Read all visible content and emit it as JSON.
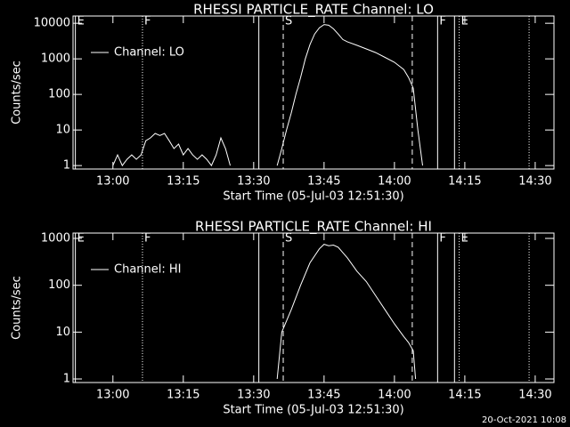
{
  "chart_data": [
    {
      "type": "line",
      "title": "RHESSI PARTICLE_RATE Channel: LO",
      "xlabel": "Start Time (05-Jul-03 12:51:30)",
      "ylabel": "Counts/sec",
      "log_y": true,
      "xlim": [
        771.5,
        874
      ],
      "ylim": [
        0.8,
        16000
      ],
      "xticks": [
        {
          "value": 780,
          "label": "13:00"
        },
        {
          "value": 795,
          "label": "13:15"
        },
        {
          "value": 810,
          "label": "13:30"
        },
        {
          "value": 825,
          "label": "13:45"
        },
        {
          "value": 840,
          "label": "14:00"
        },
        {
          "value": 855,
          "label": "14:15"
        },
        {
          "value": 870,
          "label": "14:30"
        }
      ],
      "yticks": [
        1,
        10,
        100,
        1000,
        10000
      ],
      "legend": "upper left",
      "vlines": [
        {
          "x": 772,
          "style": "solid",
          "label": "E"
        },
        {
          "x": 786.3,
          "style": "dotted",
          "label": "F"
        },
        {
          "x": 811.1,
          "style": "solid"
        },
        {
          "x": 816.3,
          "style": "dashed",
          "label": "S"
        },
        {
          "x": 843.8,
          "style": "dashed"
        },
        {
          "x": 849.2,
          "style": "solid",
          "label": "F"
        },
        {
          "x": 852.8,
          "style": "solid"
        },
        {
          "x": 853.8,
          "style": "dotted",
          "label": "E"
        },
        {
          "x": 868.7,
          "style": "dotted"
        }
      ],
      "x": [
        780,
        781,
        782,
        783,
        784,
        785,
        786,
        787,
        788,
        789,
        790,
        791,
        792,
        793,
        794,
        795,
        796,
        797,
        798,
        799,
        800,
        801,
        802,
        803,
        804,
        805,
        810,
        815,
        816,
        817,
        818,
        819,
        820,
        821,
        822,
        823,
        824,
        825,
        826,
        827,
        828,
        829,
        830,
        832,
        834,
        836,
        838,
        840,
        842,
        843,
        844,
        845,
        846
      ],
      "series": [
        {
          "name": "Channel: LO",
          "color": "#ffffff",
          "values": [
            1,
            2,
            1,
            1.5,
            2,
            1.5,
            2,
            5,
            6,
            8,
            7,
            8,
            5,
            3,
            4,
            2,
            3,
            2,
            1.5,
            2,
            1.5,
            1,
            2,
            6,
            3,
            1,
            null,
            1,
            3,
            10,
            30,
            100,
            300,
            1000,
            2500,
            5000,
            7500,
            9200,
            8800,
            7000,
            5000,
            3500,
            3000,
            2400,
            1900,
            1500,
            1100,
            800,
            500,
            300,
            150,
            10,
            1
          ]
        }
      ]
    },
    {
      "type": "line",
      "title": "RHESSI PARTICLE_RATE Channel: HI",
      "xlabel": "Start Time (05-Jul-03 12:51:30)",
      "ylabel": "Counts/sec",
      "log_y": true,
      "xlim": [
        771.5,
        874
      ],
      "ylim": [
        0.84,
        1300
      ],
      "xticks": [
        {
          "value": 780,
          "label": "13:00"
        },
        {
          "value": 795,
          "label": "13:15"
        },
        {
          "value": 810,
          "label": "13:30"
        },
        {
          "value": 825,
          "label": "13:45"
        },
        {
          "value": 840,
          "label": "14:00"
        },
        {
          "value": 855,
          "label": "14:15"
        },
        {
          "value": 870,
          "label": "14:30"
        }
      ],
      "yticks": [
        1,
        10,
        100,
        1000
      ],
      "legend": "upper left",
      "vlines": [
        {
          "x": 772,
          "style": "solid",
          "label": "E"
        },
        {
          "x": 786.3,
          "style": "dotted",
          "label": "F"
        },
        {
          "x": 811.1,
          "style": "solid"
        },
        {
          "x": 816.3,
          "style": "dashed",
          "label": "S"
        },
        {
          "x": 843.8,
          "style": "dashed"
        },
        {
          "x": 849.2,
          "style": "solid",
          "label": "F"
        },
        {
          "x": 852.8,
          "style": "solid"
        },
        {
          "x": 853.8,
          "style": "dotted",
          "label": "E"
        },
        {
          "x": 868.7,
          "style": "dotted"
        }
      ],
      "x": [
        815,
        816,
        818,
        820,
        822,
        824,
        825,
        826,
        827,
        828,
        829,
        830,
        832,
        834,
        836,
        838,
        840,
        842,
        843,
        844,
        844.5
      ],
      "series": [
        {
          "name": "Channel: HI",
          "color": "#ffffff",
          "values": [
            1,
            10,
            30,
            100,
            300,
            600,
            750,
            700,
            720,
            650,
            500,
            380,
            200,
            120,
            60,
            30,
            15,
            8,
            6,
            4,
            1
          ]
        }
      ]
    }
  ],
  "footer": "20-Oct-2021 10:08"
}
